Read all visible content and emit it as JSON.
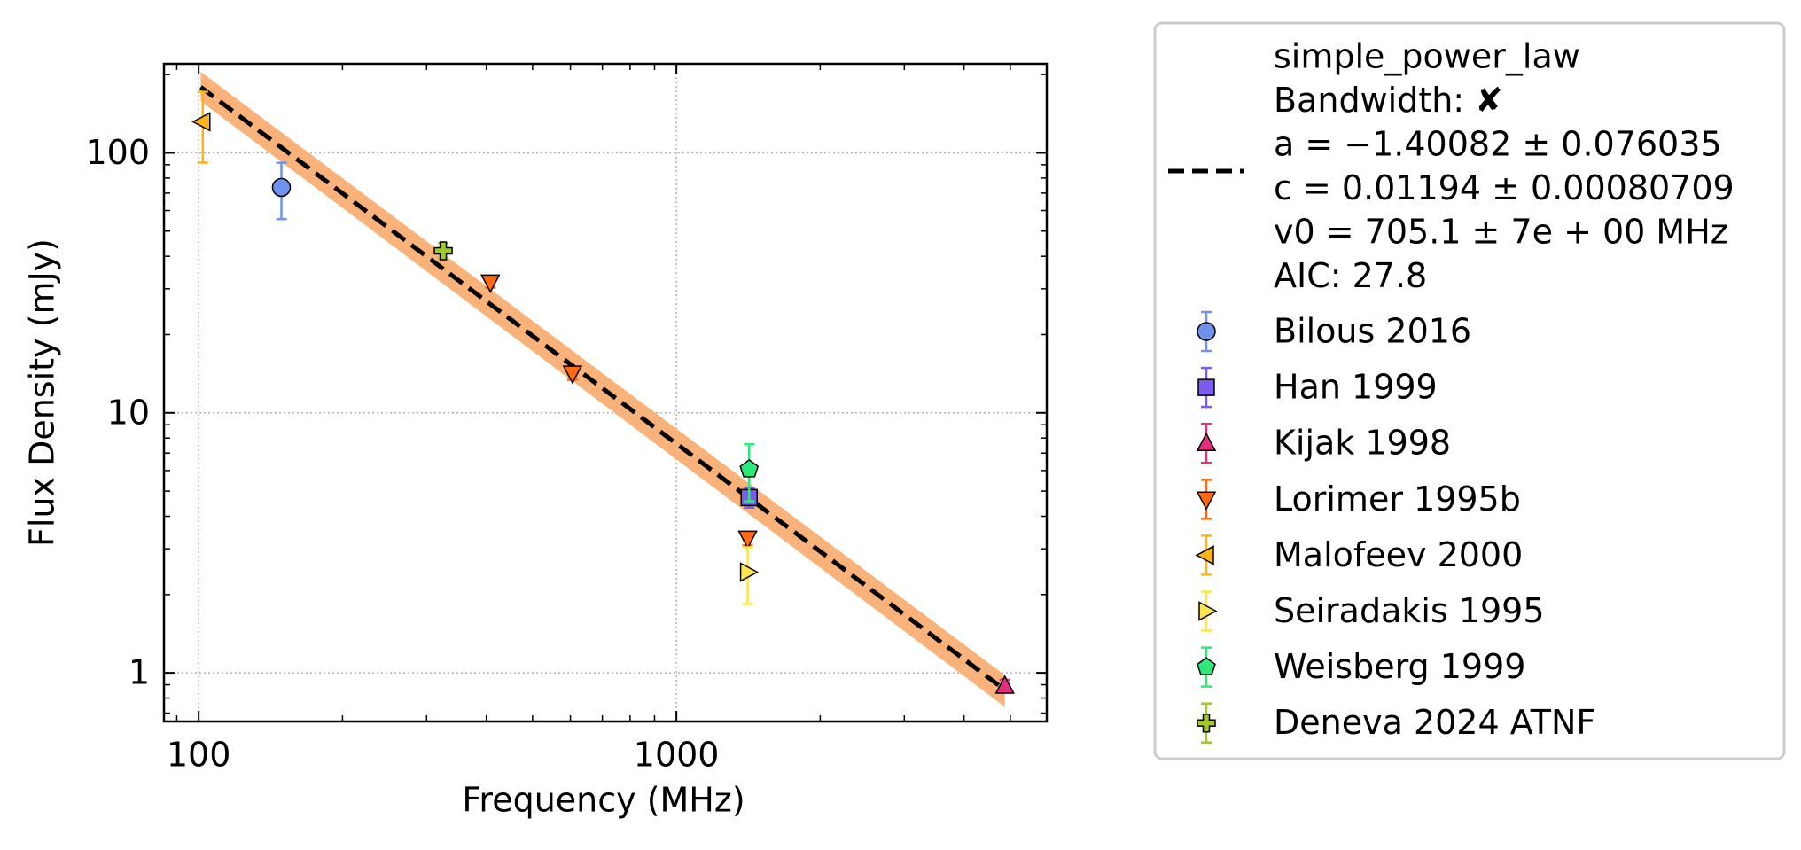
{
  "chart_data": {
    "type": "scatter",
    "xlabel": "Frequency (MHz)",
    "ylabel": "Flux Density (mJy)",
    "xscale": "log",
    "yscale": "log",
    "xlim": [
      84.6,
      5960
    ],
    "ylim": [
      0.65,
      220
    ],
    "xticks": [
      100,
      1000
    ],
    "yticks": [
      1,
      10,
      100
    ],
    "minor_ticks": true,
    "grid": true,
    "legend": "outside right",
    "fit": {
      "color": "#000000",
      "x": [
        101,
        4870
      ],
      "y": [
        179,
        0.86
      ],
      "band": {
        "color": "#f9b27a",
        "upper": [
          205,
          0.98
        ],
        "lower": [
          158,
          0.74
        ]
      },
      "label": [
        "simple_power_law",
        "Bandwidth: ✘",
        "a = −1.40082 ± 0.076035",
        "c = 0.01194 ± 0.00080709",
        "v0 = 705.1 ± 7e + 00 MHz",
        "AIC: 27.8"
      ]
    },
    "series": [
      {
        "name": "Bilous 2016",
        "color": "#6f93ec",
        "marker": "circle",
        "x": [
          149
        ],
        "values": [
          73.6
        ],
        "errors": [
          18
        ]
      },
      {
        "name": "Han 1999",
        "color": "#7b5cec",
        "marker": "square",
        "x": [
          1420
        ],
        "values": [
          4.72
        ],
        "errors": [
          0.4
        ]
      },
      {
        "name": "Kijak 1998",
        "color": "#e0307e",
        "marker": "triangle-up",
        "x": [
          4870
        ],
        "values": [
          0.89
        ],
        "errors": [
          0.05
        ]
      },
      {
        "name": "Lorimer 1995b",
        "color": "#ff6a10",
        "marker": "triangle-down",
        "x": [
          408,
          606,
          1410
        ],
        "values": [
          31.8,
          14.2,
          3.29
        ],
        "errors": [
          1.5,
          0.8,
          0.2
        ]
      },
      {
        "name": "Malofeev 2000",
        "color": "#ffb21a",
        "marker": "triangle-left",
        "x": [
          102
        ],
        "values": [
          131.7
        ],
        "errors": [
          40
        ]
      },
      {
        "name": "Seiradakis 1995",
        "color": "#ffe44a",
        "marker": "triangle-right",
        "x": [
          1410
        ],
        "values": [
          2.44
        ],
        "errors": [
          0.6
        ]
      },
      {
        "name": "Weisberg 1999",
        "color": "#2ee87a",
        "marker": "pentagon",
        "x": [
          1420
        ],
        "values": [
          6.07
        ],
        "errors": [
          1.5
        ]
      },
      {
        "name": "Deneva 2024 ATNF",
        "color": "#9ec82e",
        "marker": "plus",
        "x": [
          325
        ],
        "values": [
          42
        ],
        "errors": [
          3
        ]
      }
    ]
  }
}
